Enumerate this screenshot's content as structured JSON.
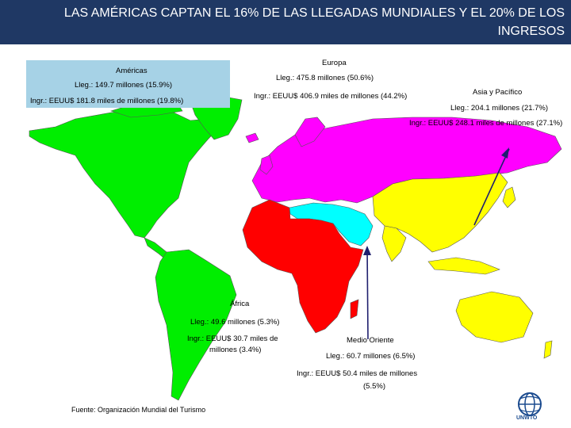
{
  "title": "LAS AMÉRICAS CAPTAN EL 16% DE LAS LLEGADAS MUNDIALES Y EL 20% DE LOS INGRESOS",
  "regions": {
    "americas": {
      "name": "Américas",
      "arrivals": "Lleg.: 149.7 millones (15.9%)",
      "receipts": "Ingr.: EEUU$ 181.8 miles de millones (19.8%)",
      "color": "#00ee00"
    },
    "europe": {
      "name": "Europa",
      "arrivals": "Lleg.: 475.8 millones (50.6%)",
      "receipts": "Ingr.: EEUU$ 406.9 miles de millones (44.2%)",
      "color": "#ff00ff"
    },
    "asia_pacific": {
      "name": "Asia y Pacífico",
      "arrivals": "Lleg.: 204.1 millones (21.7%)",
      "receipts": "Ingr.: EEUU$ 248.1 miles de millones (27.1%)",
      "color": "#ffff00"
    },
    "africa": {
      "name": "África",
      "arrivals": "Lleg.: 49.6 millones (5.3%)",
      "receipts_1": "Ingr.: EEUU$ 30.7 miles de",
      "receipts_2": "millones (3.4%)",
      "color": "#ff0000"
    },
    "middle_east": {
      "name": "Medio Oriente",
      "arrivals": "Lleg.: 60.7 millones (6.5%)",
      "receipts_1": "Ingr.: EEUU$ 50.4 miles de millones",
      "receipts_2": "(5.5%)",
      "color": "#00ffff"
    }
  },
  "source": "Fuente: Organización Mundial del Turismo",
  "logo": {
    "text": "UNWTO",
    "icon": "unwto-globe-logo",
    "color": "#1b4b8f"
  },
  "colors": {
    "title_bar": "#1f3864",
    "americas_box": "#a6d2e6",
    "arrow": "#1f1f6e"
  }
}
